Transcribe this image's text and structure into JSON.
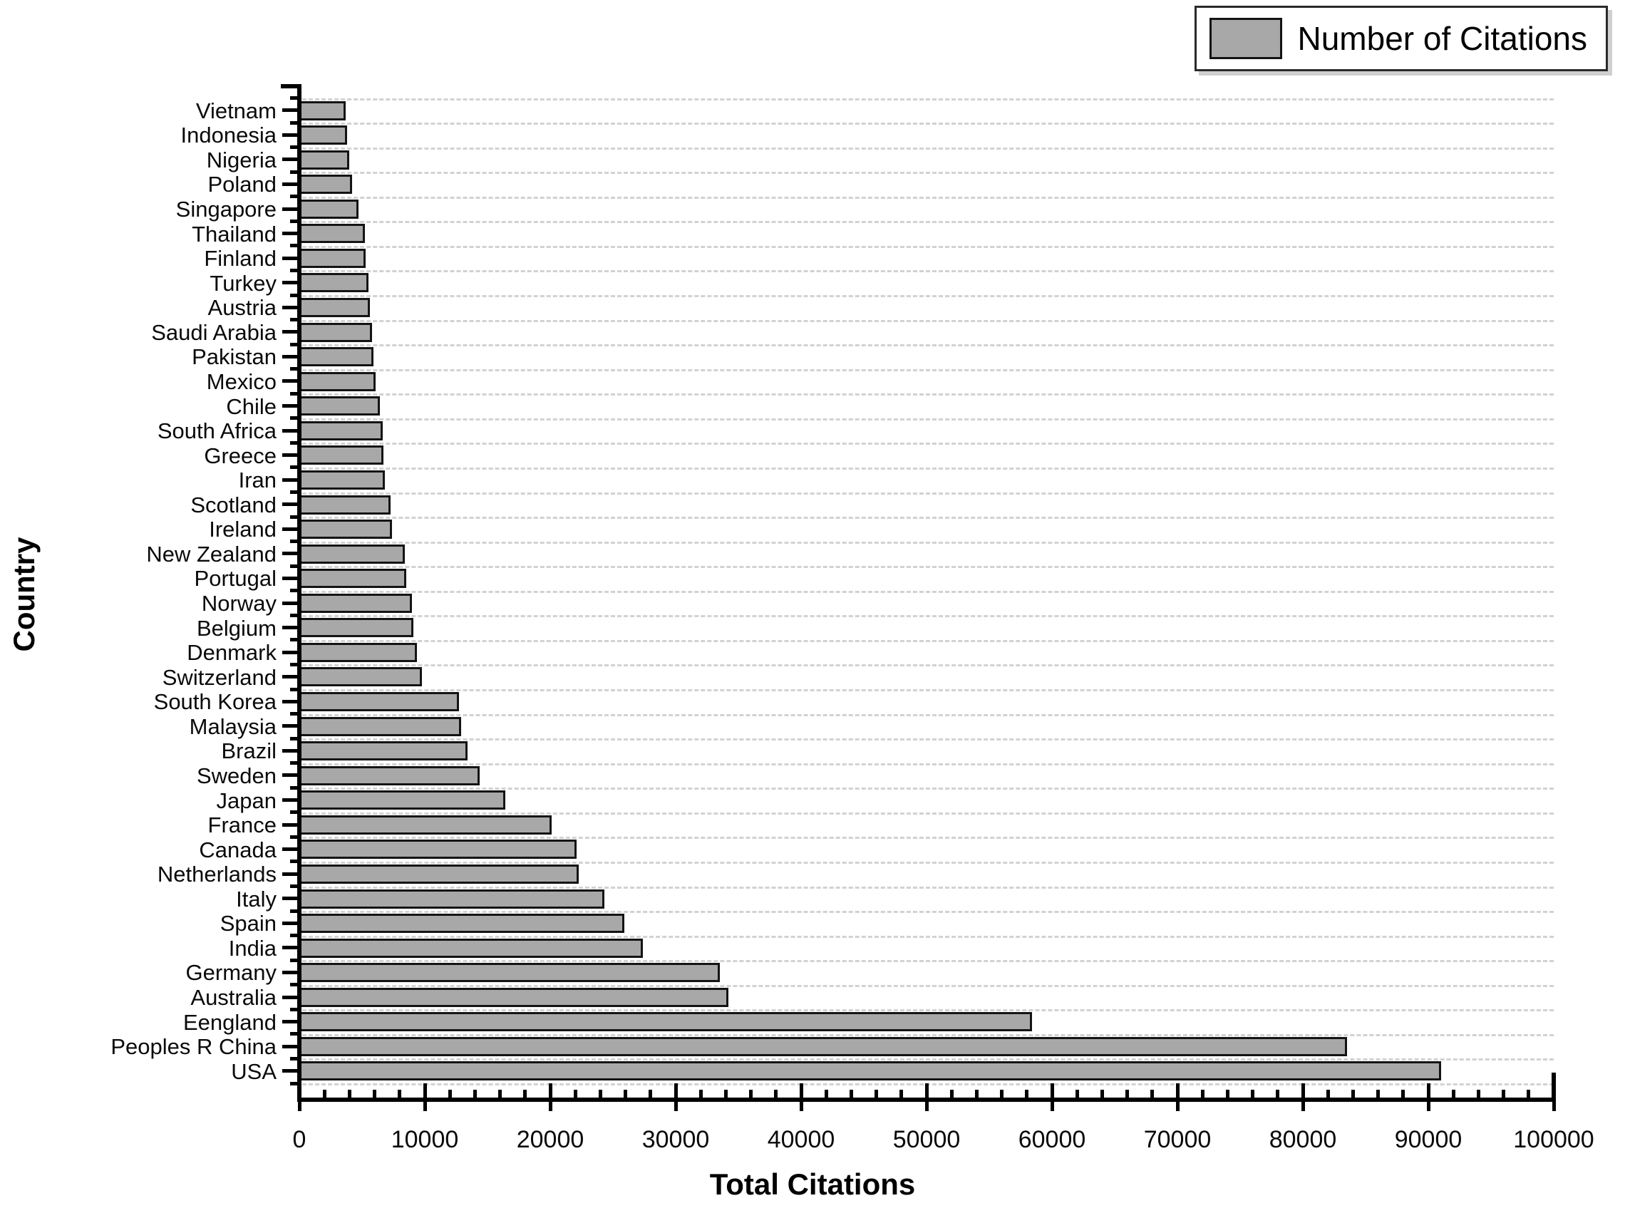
{
  "chart_data": {
    "type": "bar",
    "orientation": "horizontal",
    "title": "",
    "xlabel": "Total Citations",
    "ylabel": "Country",
    "legend_label": "Number of Citations",
    "legend_position": "top-right",
    "xlim": [
      0,
      100000
    ],
    "x_major_tick_step": 10000,
    "x_minor_tick_step": 2000,
    "x_tick_labels": [
      "0",
      "10000",
      "20000",
      "30000",
      "40000",
      "50000",
      "60000",
      "70000",
      "80000",
      "90000",
      "100000"
    ],
    "grid": "horizontal dashed gridlines per bar row",
    "bar_fill": "#a8a8a8",
    "bar_border": "#141414",
    "grid_color": "#d2d2d2",
    "axis_color": "#000000",
    "background": "#ffffff",
    "categories": [
      "Vietnam",
      "Indonesia",
      "Nigeria",
      "Poland",
      "Singapore",
      "Thailand",
      "Finland",
      "Turkey",
      "Austria",
      "Saudi Arabia",
      "Pakistan",
      "Mexico",
      "Chile",
      "South Africa",
      "Greece",
      "Iran",
      "Scotland",
      "Ireland",
      "New Zealand",
      "Portugal",
      "Norway",
      "Belgium",
      "Denmark",
      "Switzerland",
      "South Korea",
      "Malaysia",
      "Brazil",
      "Sweden",
      "Japan",
      "France",
      "Canada",
      "Netherlands",
      "Italy",
      "Spain",
      "India",
      "Germany",
      "Australia",
      "Eengland",
      "Peoples R China",
      "USA"
    ],
    "values": [
      3700,
      3800,
      3950,
      4200,
      4700,
      5200,
      5300,
      5500,
      5600,
      5800,
      5900,
      6100,
      6400,
      6650,
      6700,
      6800,
      7300,
      7400,
      8400,
      8500,
      9000,
      9100,
      9400,
      9800,
      12700,
      12900,
      13400,
      14400,
      16400,
      20100,
      22100,
      22300,
      24300,
      25900,
      27400,
      33500,
      34200,
      58400,
      83500,
      91000
    ]
  }
}
